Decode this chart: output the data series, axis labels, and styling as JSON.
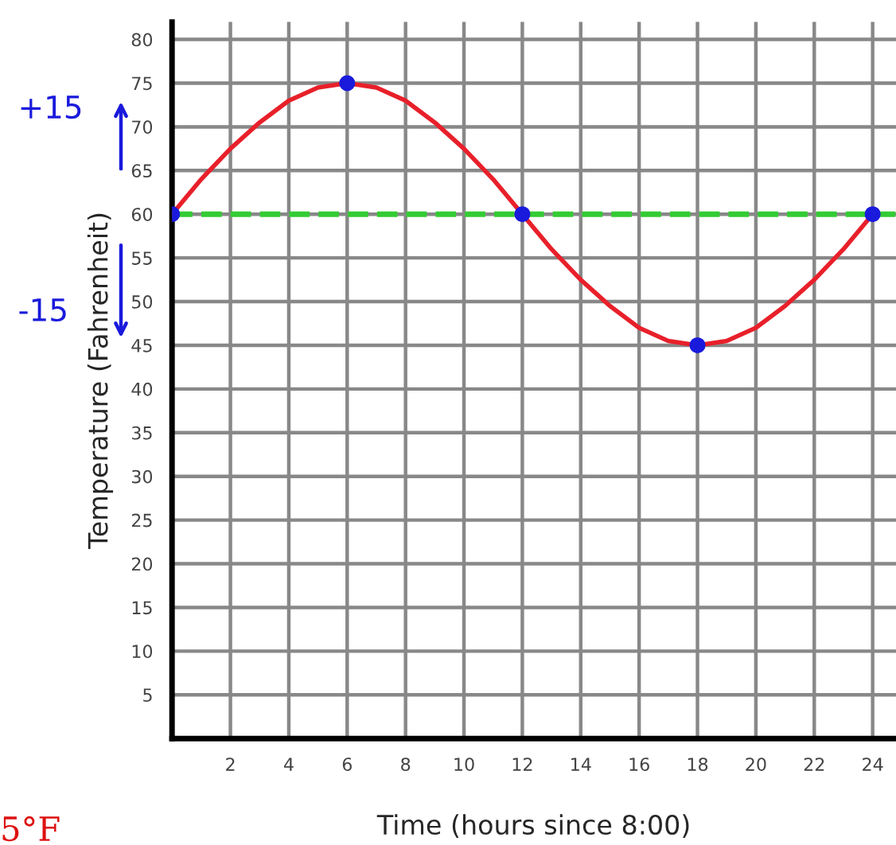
{
  "chart_data": {
    "type": "line",
    "xlabel": "Time (hours since 8:00)",
    "ylabel": "Temperature (Fahrenheit)",
    "x": [
      0,
      1,
      2,
      3,
      4,
      5,
      6,
      7,
      8,
      9,
      10,
      11,
      12,
      13,
      14,
      15,
      16,
      17,
      18,
      19,
      20,
      21,
      22,
      23,
      24
    ],
    "series": [
      {
        "color": "#e8202a",
        "values": [
          60,
          64,
          67.5,
          70.5,
          73,
          74.5,
          75,
          74.5,
          73,
          70.5,
          67.5,
          64,
          60,
          56,
          52.5,
          49.5,
          47,
          45.5,
          45,
          45.5,
          47,
          49.5,
          52.5,
          56,
          60
        ]
      },
      {
        "type": "scatter",
        "color": "#1a1adc",
        "x": [
          0,
          6,
          12,
          18,
          24
        ],
        "values": [
          60,
          75,
          60,
          45,
          60
        ]
      }
    ],
    "ref_lines": [
      {
        "axis": "y",
        "value": 60,
        "color": "#33cc33",
        "line_style": "dashed"
      }
    ],
    "annotations": [
      "+15",
      "-15",
      "5°F"
    ],
    "xlim": [
      0,
      24.8
    ],
    "ylim": [
      0,
      82
    ],
    "xticks": [
      2,
      4,
      6,
      8,
      10,
      12,
      14,
      16,
      18,
      20,
      22,
      24
    ],
    "yticks": [
      5,
      10,
      15,
      20,
      25,
      30,
      35,
      40,
      45,
      50,
      55,
      60,
      65,
      70,
      75,
      80
    ],
    "grid": true
  }
}
